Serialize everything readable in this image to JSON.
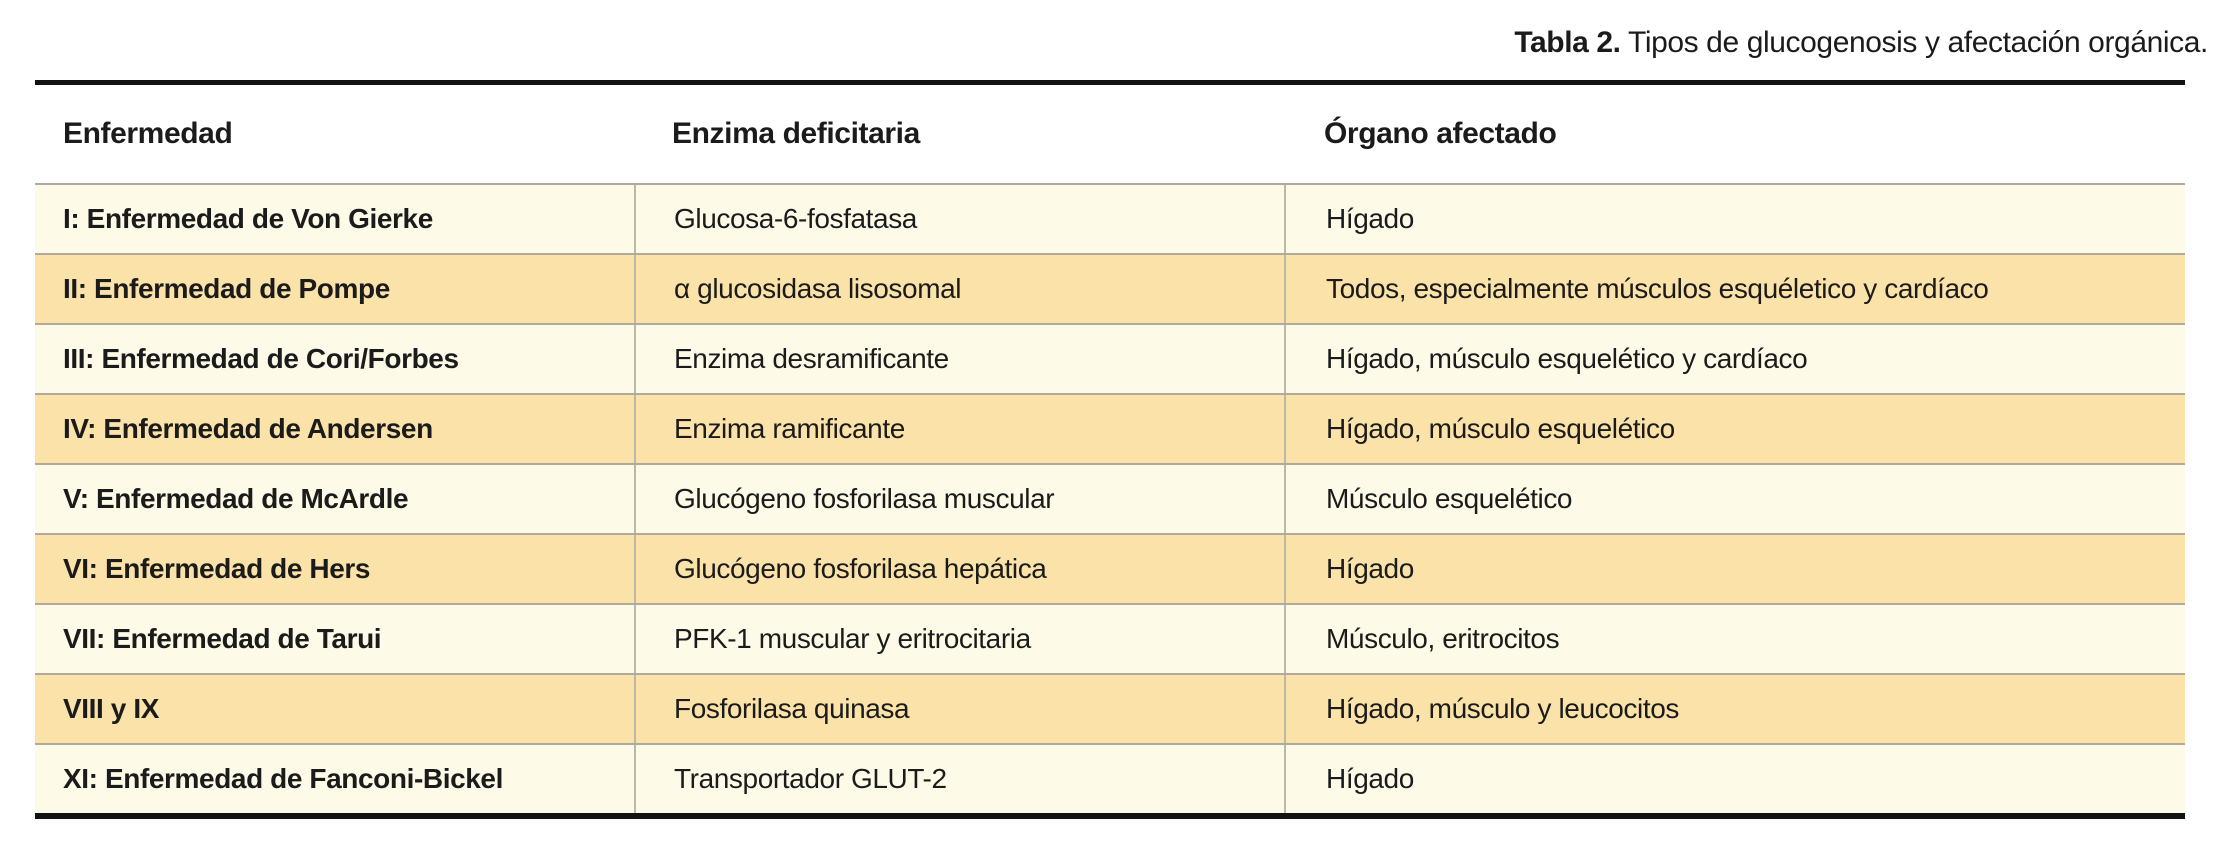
{
  "caption": {
    "label": "Tabla 2.",
    "text": " Tipos de glucogenosis y afectación orgánica."
  },
  "table": {
    "columns": [
      "Enfermedad",
      "Enzima deficitaria",
      "Órgano afectado"
    ],
    "rows": [
      {
        "enfermedad": "I: Enfermedad de Von Gierke",
        "enzima": "Glucosa-6-fosfatasa",
        "organo": "Hígado"
      },
      {
        "enfermedad": "II: Enfermedad de Pompe",
        "enzima": "α glucosidasa lisosomal",
        "organo": "Todos, especialmente músculos esquéletico y cardíaco"
      },
      {
        "enfermedad": "III: Enfermedad de Cori/Forbes",
        "enzima": "Enzima desramificante",
        "organo": "Hígado, músculo esquelético y cardíaco"
      },
      {
        "enfermedad": "IV: Enfermedad de Andersen",
        "enzima": "Enzima ramificante",
        "organo": "Hígado, músculo esquelético"
      },
      {
        "enfermedad": "V: Enfermedad de McArdle",
        "enzima": "Glucógeno fosforilasa muscular",
        "organo": "Músculo esquelético"
      },
      {
        "enfermedad": "VI: Enfermedad de Hers",
        "enzima": "Glucógeno fosforilasa hepática",
        "organo": "Hígado"
      },
      {
        "enfermedad": "VII: Enfermedad de Tarui",
        "enzima": "PFK-1 muscular y eritrocitaria",
        "organo": "Músculo, eritrocitos"
      },
      {
        "enfermedad": "VIII y IX",
        "enzima": "Fosforilasa quinasa",
        "organo": "Hígado, músculo y leucocitos"
      },
      {
        "enfermedad": "XI: Enfermedad de Fanconi-Bickel",
        "enzima": "Transportador GLUT-2",
        "organo": "Hígado"
      }
    ]
  },
  "colors": {
    "row_light": "#FDFAE8",
    "row_dark": "#FBE2A8",
    "rule": "#121212",
    "row_separator": "#B1A999",
    "column_divider": "#BDB7A8"
  }
}
